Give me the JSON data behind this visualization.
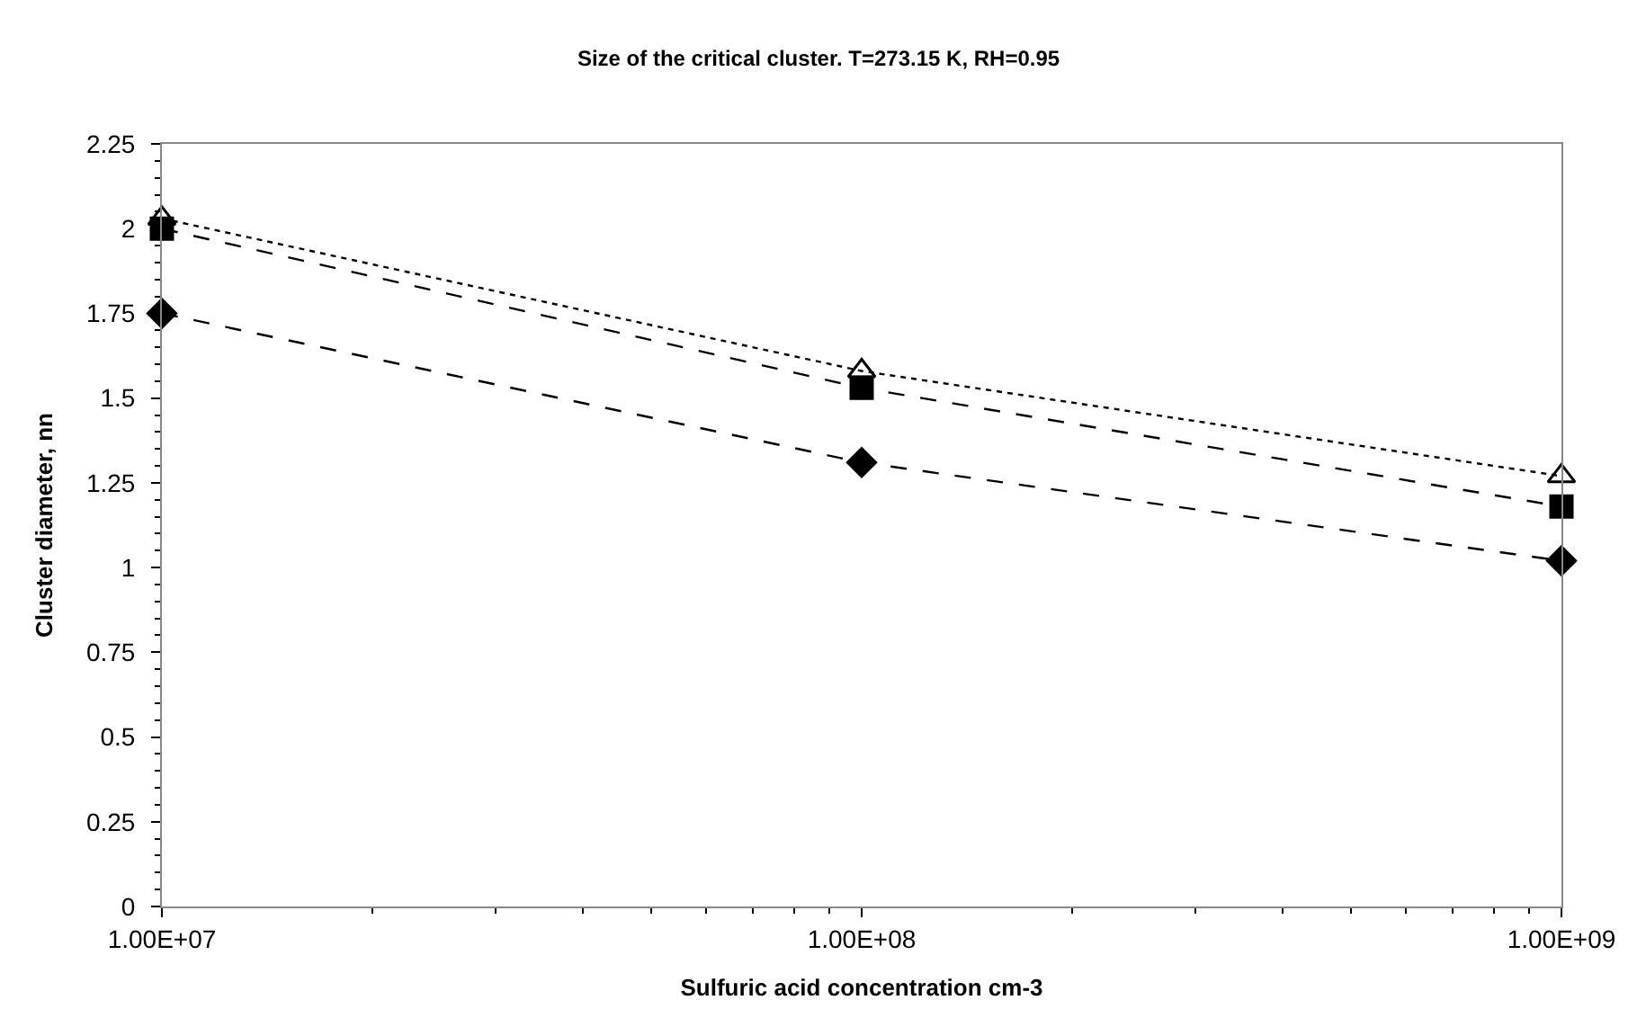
{
  "chart_data": {
    "type": "line",
    "title": "Size of the critical cluster. T=273.15 K, RH=0.95",
    "xlabel": "Sulfuric acid concentration cm-3",
    "ylabel": "Cluster diameter, nn",
    "log": "x",
    "x": [
      10000000,
      100000000,
      1000000000
    ],
    "series": [
      {
        "color": "#000000",
        "marker": "diamond",
        "line_style": "dashed",
        "values": [
          1.75,
          1.31,
          1.02
        ]
      },
      {
        "color": "#000000",
        "marker": "square",
        "line_style": "dashed",
        "values": [
          2.0,
          1.53,
          1.18
        ]
      },
      {
        "color": "#000000",
        "marker": "triangle",
        "line_style": "dotted",
        "values": [
          2.03,
          1.58,
          1.27
        ]
      }
    ],
    "xlim": [
      10000000,
      1000000000
    ],
    "xticks": [
      {
        "value": 10000000,
        "label": "1.00E+07"
      },
      {
        "value": 100000000,
        "label": "1.00E+08"
      },
      {
        "value": 1000000000,
        "label": "1.00E+09"
      }
    ],
    "ylim": [
      0,
      2.25
    ],
    "yticks": [
      0,
      0.25,
      0.5,
      0.75,
      1,
      1.25,
      1.5,
      1.75,
      2,
      2.25
    ],
    "grid": false
  }
}
